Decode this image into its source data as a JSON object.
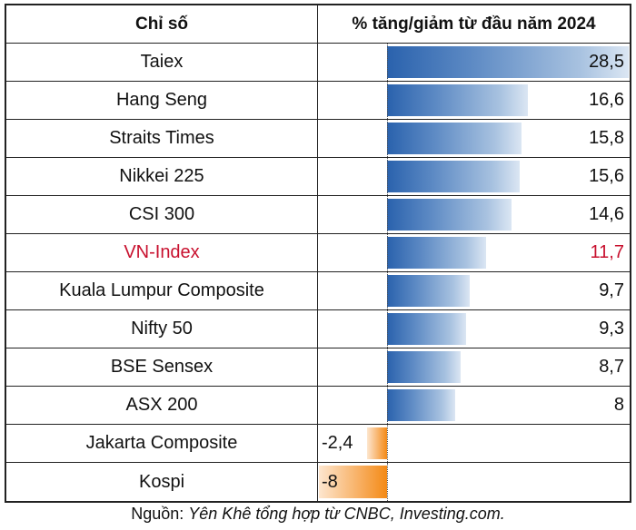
{
  "table": {
    "headers": [
      "Chỉ số",
      "% tăng/giảm từ đầu năm 2024"
    ],
    "rows": [
      {
        "name": "Taiex",
        "value": "28,5",
        "num": 28.5
      },
      {
        "name": "Hang Seng",
        "value": "16,6",
        "num": 16.6
      },
      {
        "name": "Straits Times",
        "value": "15,8",
        "num": 15.8
      },
      {
        "name": "Nikkei 225",
        "value": "15,6",
        "num": 15.6
      },
      {
        "name": "CSI 300",
        "value": "14,6",
        "num": 14.6
      },
      {
        "name": "VN-Index",
        "value": "11,7",
        "num": 11.7,
        "highlight": true
      },
      {
        "name": "Kuala Lumpur Composite",
        "value": "9,7",
        "num": 9.7
      },
      {
        "name": "Nifty 50",
        "value": "9,3",
        "num": 9.3
      },
      {
        "name": "BSE Sensex",
        "value": "8,7",
        "num": 8.7
      },
      {
        "name": "ASX 200",
        "value": "8",
        "num": 8
      },
      {
        "name": "Jakarta Composite",
        "value": "-2,4",
        "num": -2.4
      },
      {
        "name": "Kospi",
        "value": "-8",
        "num": -8
      }
    ]
  },
  "source": {
    "prefix": "Nguồn: ",
    "text": "Yên Khê tổng hợp từ CNBC, Investing.com."
  },
  "colors": {
    "positive": "#2a62ad",
    "negative": "#f48a16",
    "highlight": "#c8102e"
  },
  "chart_data": {
    "type": "bar",
    "title": "% tăng/giảm từ đầu năm 2024",
    "categories": [
      "Taiex",
      "Hang Seng",
      "Straits Times",
      "Nikkei 225",
      "CSI 300",
      "VN-Index",
      "Kuala Lumpur Composite",
      "Nifty 50",
      "BSE Sensex",
      "ASX 200",
      "Jakarta Composite",
      "Kospi"
    ],
    "values": [
      28.5,
      16.6,
      15.8,
      15.6,
      14.6,
      11.7,
      9.7,
      9.3,
      8.7,
      8,
      -2.4,
      -8
    ],
    "xlabel": "",
    "ylabel": "Chỉ số",
    "orientation": "horizontal"
  }
}
